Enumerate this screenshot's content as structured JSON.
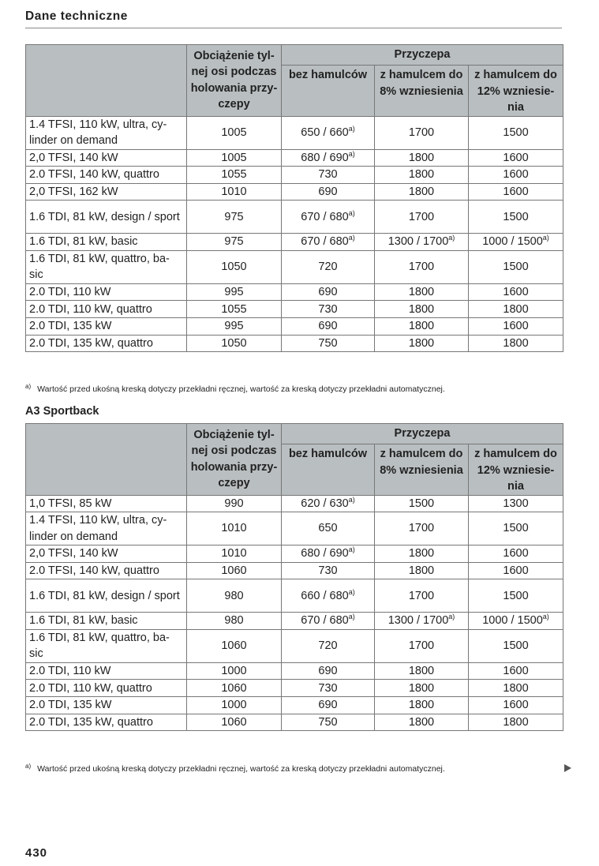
{
  "header": {
    "title": "Dane techniczne"
  },
  "columns": {
    "axle": "Obciążenie tyl-nej osi podczas holowania przy-czepy",
    "trailer": "Przyczepa",
    "no_brakes": "bez hamulców",
    "brakes8": "z hamulcem do 8% wzniesienia",
    "brakes12": "z hamulcem do 12% wzniesie-nia"
  },
  "footnote": {
    "mark": "a)",
    "text": "Wartość przed ukośną kreską dotyczy przekładni ręcznej, wartość za kreską dotyczy przekładni automatycznej."
  },
  "table1": [
    [
      "1.4 TFSI, 110 kW, ultra, cy-linder on demand",
      "1005",
      "650 / 660|a)",
      "1700",
      "1500"
    ],
    [
      "2,0 TFSI, 140 kW",
      "1005",
      "680 / 690|a)",
      "1800",
      "1600"
    ],
    [
      "2.0 TFSI, 140 kW, quattro",
      "1055",
      "730",
      "1800",
      "1600"
    ],
    [
      "2,0 TFSI, 162 kW",
      "1010",
      "690",
      "1800",
      "1600"
    ],
    [
      "1.6 TDI, 81 kW, design / sport",
      "975",
      "670 / 680|a)",
      "1700",
      "1500"
    ],
    [
      "1.6 TDI, 81 kW, basic",
      "975",
      "670 / 680|a)",
      "1300 / 1700|a)",
      "1000 / 1500|a)"
    ],
    [
      "1.6 TDI, 81 kW, quattro, ba-sic",
      "1050",
      "720",
      "1700",
      "1500"
    ],
    [
      "2.0 TDI, 110 kW",
      "995",
      "690",
      "1800",
      "1600"
    ],
    [
      "2.0 TDI, 110 kW, quattro",
      "1055",
      "730",
      "1800",
      "1800"
    ],
    [
      "2.0 TDI, 135 kW",
      "995",
      "690",
      "1800",
      "1600"
    ],
    [
      "2.0 TDI, 135 kW, quattro",
      "1050",
      "750",
      "1800",
      "1800"
    ]
  ],
  "section2": {
    "title": "A3 Sportback"
  },
  "table2": [
    [
      "1,0 TFSI, 85 kW",
      "990",
      "620 / 630|a)",
      "1500",
      "1300"
    ],
    [
      "1.4 TFSI, 110 kW, ultra, cy-linder on demand",
      "1010",
      "650",
      "1700",
      "1500"
    ],
    [
      "2,0 TFSI, 140 kW",
      "1010",
      "680 / 690|a)",
      "1800",
      "1600"
    ],
    [
      "2.0 TFSI, 140 kW, quattro",
      "1060",
      "730",
      "1800",
      "1600"
    ],
    [
      "1.6 TDI, 81 kW, design / sport",
      "980",
      "660 / 680|a)",
      "1700",
      "1500"
    ],
    [
      "1.6 TDI, 81 kW, basic",
      "980",
      "670 / 680|a)",
      "1300 / 1700|a)",
      "1000 / 1500|a)"
    ],
    [
      "1.6 TDI, 81 kW, quattro, ba-sic",
      "1060",
      "720",
      "1700",
      "1500"
    ],
    [
      "2.0 TDI, 110 kW",
      "1000",
      "690",
      "1800",
      "1600"
    ],
    [
      "2.0 TDI, 110 kW, quattro",
      "1060",
      "730",
      "1800",
      "1800"
    ],
    [
      "2.0 TDI, 135 kW",
      "1000",
      "690",
      "1800",
      "1600"
    ],
    [
      "2.0 TDI, 135 kW, quattro",
      "1060",
      "750",
      "1800",
      "1800"
    ]
  ],
  "page": {
    "number": "430"
  },
  "icons": {
    "next": "arrow-right-icon"
  }
}
